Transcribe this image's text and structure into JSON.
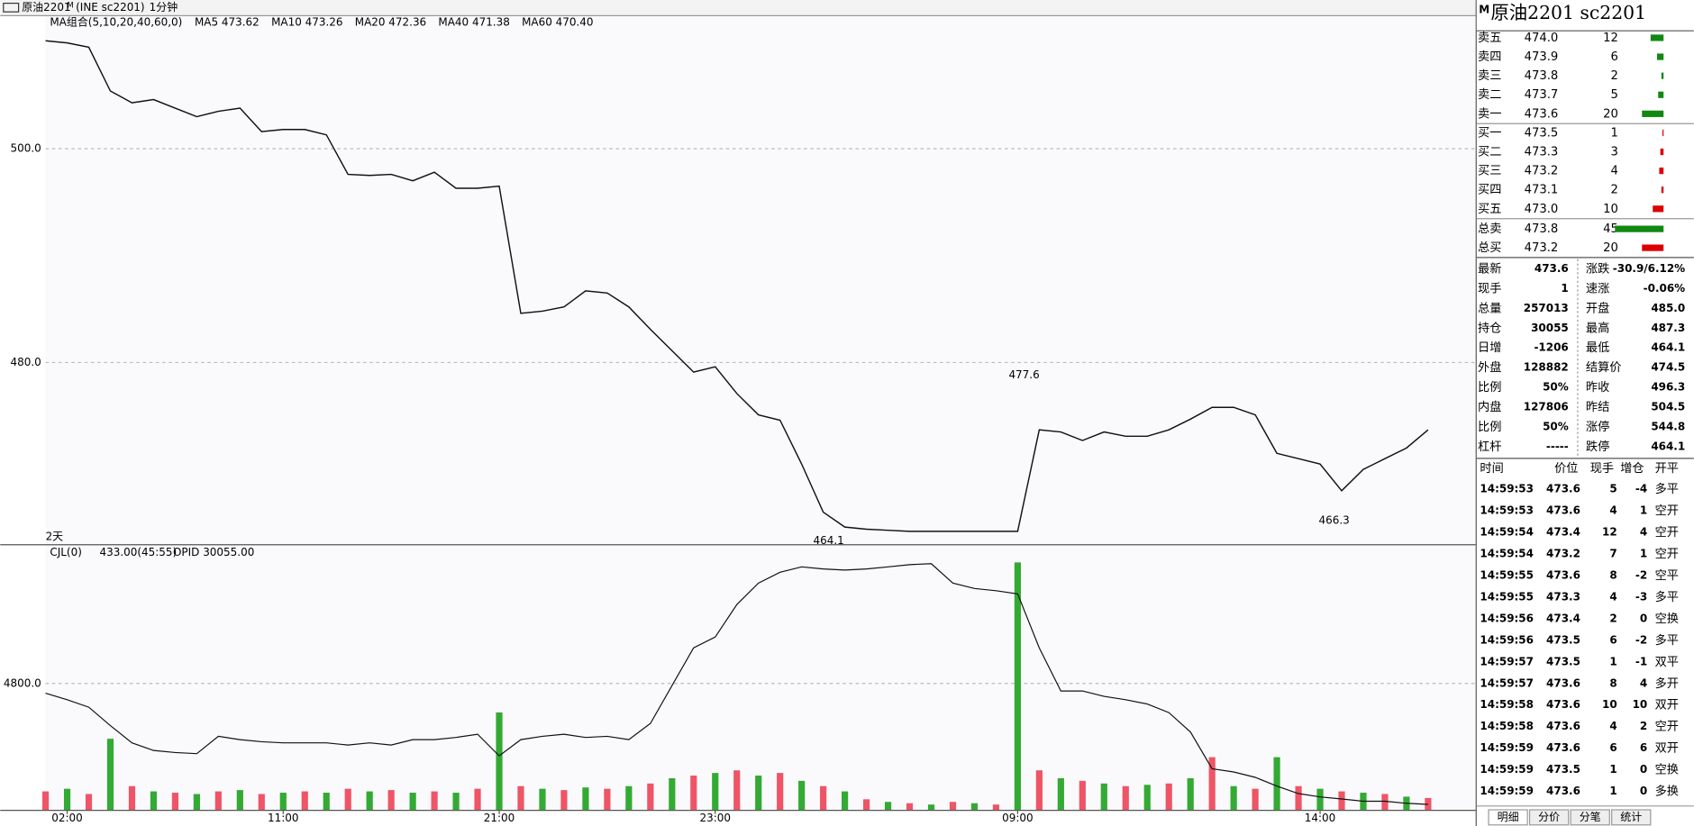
{
  "toolbar": {
    "symbol": "原油2201",
    "flag": "M",
    "exchange": "(INE sc2201)",
    "period": "1分钟"
  },
  "chart_data": [
    {
      "type": "line",
      "indicator": "MA组合(5,10,20,40,60,0)",
      "ma_labels": [
        "MA5 473.62",
        "MA10 473.26",
        "MA20 472.36",
        "MA40 471.38",
        "MA60 470.40"
      ],
      "ma_colors": [
        "#000000",
        "#3366dd",
        "#dd22dd",
        "#118811",
        "#777777"
      ],
      "days_label": "2天",
      "color": "#111111",
      "categories": [
        null,
        "02:00",
        null,
        null,
        null,
        null,
        null,
        null,
        null,
        null,
        null,
        "11:00",
        null,
        null,
        null,
        null,
        null,
        null,
        null,
        null,
        null,
        "21:00",
        null,
        null,
        null,
        null,
        null,
        null,
        null,
        null,
        null,
        "23:00",
        null,
        null,
        null,
        null,
        null,
        null,
        null,
        null,
        null,
        null,
        null,
        null,
        null,
        "09:00",
        null,
        null,
        null,
        null,
        null,
        null,
        null,
        null,
        null,
        null,
        null,
        null,
        null,
        "14:00",
        null,
        null,
        null,
        null,
        null
      ],
      "values": [
        510.1,
        509.9,
        509.5,
        505.4,
        504.3,
        504.6,
        503.8,
        503.0,
        503.5,
        503.8,
        501.6,
        501.8,
        501.8,
        501.3,
        497.6,
        497.5,
        497.6,
        497.0,
        497.8,
        496.3,
        496.3,
        496.5,
        484.6,
        484.8,
        485.2,
        486.7,
        486.5,
        485.2,
        483.1,
        481.1,
        479.1,
        479.6,
        477.1,
        475.1,
        474.6,
        470.5,
        466.0,
        464.6,
        464.4,
        464.3,
        464.2,
        464.2,
        464.2,
        464.2,
        464.2,
        464.2,
        473.7,
        473.5,
        472.7,
        473.5,
        473.1,
        473.1,
        473.7,
        474.7,
        475.8,
        475.8,
        475.1,
        471.5,
        471.0,
        470.5,
        468.0,
        470.0,
        471.0,
        472.0,
        473.7
      ],
      "annotations": [
        477.6,
        464.1,
        466.3
      ],
      "annotation_colors": [
        "#dd0000",
        "#118811",
        "#118811"
      ],
      "ylim": [
        463.1,
        512.4
      ],
      "yticks": [
        {
          "value": 480,
          "label": "480.0"
        },
        {
          "value": 500,
          "label": "500.0"
        }
      ],
      "grid": true
    },
    {
      "type": "bar",
      "indicator": "CJL(0)",
      "readout": "433.00(45:55)",
      "oi_label": "OPID 30055.00",
      "colors": [
        "#ee5566",
        "#33aa33"
      ],
      "oi_color": "#111111",
      "values": [
        700,
        800,
        600,
        2700,
        900,
        700,
        650,
        600,
        700,
        750,
        600,
        650,
        700,
        650,
        800,
        700,
        750,
        650,
        700,
        650,
        800,
        3700,
        900,
        800,
        750,
        850,
        800,
        900,
        1000,
        1200,
        1300,
        1400,
        1500,
        1300,
        1400,
        1100,
        900,
        700,
        400,
        300,
        250,
        200,
        300,
        250,
        200,
        9400,
        1500,
        1200,
        1100,
        1000,
        900,
        950,
        1000,
        1200,
        2000,
        900,
        800,
        2000,
        900,
        800,
        700,
        650,
        600,
        500,
        450
      ],
      "oi_values": [
        30641,
        30594,
        30540,
        30407,
        30283,
        30228,
        30213,
        30205,
        30330,
        30306,
        30291,
        30283,
        30283,
        30283,
        30267,
        30283,
        30267,
        30306,
        30306,
        30322,
        30345,
        30189,
        30306,
        30330,
        30345,
        30322,
        30330,
        30306,
        30423,
        30696,
        30968,
        31046,
        31280,
        31435,
        31513,
        31552,
        31537,
        31529,
        31537,
        31552,
        31568,
        31575,
        31435,
        31396,
        31380,
        31357,
        30968,
        30657,
        30657,
        30618,
        30594,
        30563,
        30501,
        30361,
        30096,
        30073,
        30034,
        29971,
        29917,
        29893,
        29878,
        29862,
        29862,
        29847,
        29839
      ],
      "ylim": [
        0,
        10010
      ],
      "yticks": [
        {
          "value": 4800,
          "label": "4800.0"
        }
      ],
      "y2lim": [
        29800,
        31700
      ],
      "grid": true
    }
  ],
  "quote": {
    "title": "原油2201  sc2201",
    "flag": "M",
    "book": [
      {
        "label": "卖五",
        "price": "474.0",
        "qty": 12,
        "color": "#dd0000"
      },
      {
        "label": "卖四",
        "price": "473.9",
        "qty": 6,
        "color": "#dd0000"
      },
      {
        "label": "卖三",
        "price": "473.8",
        "qty": 2,
        "color": "#118811"
      },
      {
        "label": "卖二",
        "price": "473.7",
        "qty": 5,
        "color": "#118811"
      },
      {
        "label": "卖一",
        "price": "473.6",
        "qty": 20,
        "color": "#118811"
      },
      {
        "label": "买一",
        "price": "473.5",
        "qty": 1,
        "color": "#118811"
      },
      {
        "label": "买二",
        "price": "473.3",
        "qty": 3,
        "color": "#118811"
      },
      {
        "label": "买三",
        "price": "473.2",
        "qty": 4,
        "color": "#118811"
      },
      {
        "label": "买四",
        "price": "473.1",
        "qty": 2,
        "color": "#dd0000"
      },
      {
        "label": "买五",
        "price": "473.0",
        "qty": 10,
        "color": "#dd0000"
      }
    ],
    "totals": [
      {
        "label": "总卖",
        "price": "473.8",
        "qty": 45,
        "color": "#118811"
      },
      {
        "label": "总买",
        "price": "473.2",
        "qty": 20,
        "color": "#118811"
      }
    ],
    "stats_left": [
      [
        "最新",
        "473.6",
        "#118811"
      ],
      [
        "现手",
        "1",
        "#2255aa"
      ],
      [
        "总量",
        "257013",
        "#2255aa"
      ],
      [
        "持仓",
        "30055",
        "#2255aa"
      ],
      [
        "日增",
        "-1206",
        "#2255aa"
      ],
      [
        "外盘",
        "128882",
        "#2255aa"
      ],
      [
        "比例",
        "50%",
        "#dd0000"
      ],
      [
        "内盘",
        "127806",
        "#2255aa"
      ],
      [
        "比例",
        "50%",
        "#118811"
      ],
      [
        "杠杆",
        "-----",
        "#2255aa"
      ]
    ],
    "stats_right": [
      [
        "涨跌",
        "-30.9/6.12%",
        "#118811"
      ],
      [
        "速涨",
        "-0.06%",
        "#118811"
      ],
      [
        "开盘",
        "485.0",
        "#118811"
      ],
      [
        "最高",
        "487.3",
        "#118811"
      ],
      [
        "最低",
        "464.1",
        "#118811"
      ],
      [
        "结算价",
        "474.5",
        "#118811"
      ],
      [
        "昨收",
        "496.3",
        "#000000"
      ],
      [
        "昨结",
        "504.5",
        "#000000"
      ],
      [
        "涨停",
        "544.8",
        "#dd0000"
      ],
      [
        "跌停",
        "464.1",
        "#118811"
      ]
    ]
  },
  "trades": {
    "header": [
      "时间",
      "价位",
      "现手",
      "增仓",
      "开平"
    ],
    "rows": [
      [
        "14:59:53",
        "473.6",
        "5",
        "-4",
        "多平"
      ],
      [
        "14:59:53",
        "473.6",
        "4",
        "1",
        "空开"
      ],
      [
        "14:59:54",
        "473.4",
        "12",
        "4",
        "空开"
      ],
      [
        "14:59:54",
        "473.2",
        "7",
        "1",
        "空开"
      ],
      [
        "14:59:55",
        "473.6",
        "8",
        "-2",
        "空平"
      ],
      [
        "14:59:55",
        "473.3",
        "4",
        "-3",
        "多平"
      ],
      [
        "14:59:56",
        "473.4",
        "2",
        "0",
        "空换"
      ],
      [
        "14:59:56",
        "473.5",
        "6",
        "-2",
        "多平"
      ],
      [
        "14:59:57",
        "473.5",
        "1",
        "-1",
        "双平"
      ],
      [
        "14:59:57",
        "473.6",
        "8",
        "4",
        "多开"
      ],
      [
        "14:59:58",
        "473.6",
        "10",
        "10",
        "双开"
      ],
      [
        "14:59:58",
        "473.6",
        "4",
        "2",
        "空开"
      ],
      [
        "14:59:59",
        "473.6",
        "6",
        "6",
        "双开"
      ],
      [
        "14:59:59",
        "473.5",
        "1",
        "0",
        "空换"
      ],
      [
        "14:59:59",
        "473.6",
        "1",
        "0",
        "多换"
      ]
    ],
    "qty_colors": [
      "#118811",
      "#118811",
      "#118811",
      "#118811",
      "#dd0000",
      "#118811",
      "#dd0000",
      "#118811",
      "#dd0000",
      "#dd0000",
      "#118811",
      "#118811",
      "#118811",
      "#118811",
      "#dd0000"
    ]
  },
  "tabs": [
    "明细",
    "分价",
    "分笔",
    "统计"
  ]
}
